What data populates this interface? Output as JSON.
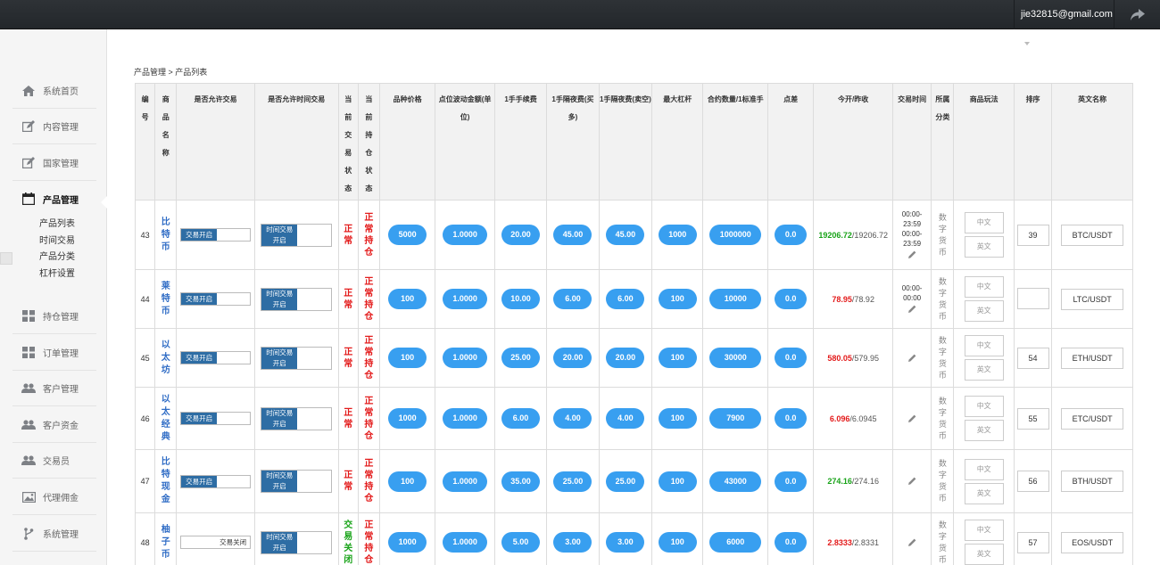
{
  "header": {
    "user_email": "jie32815@gmail.com"
  },
  "sidebar": {
    "items": [
      {
        "label": "系统首页",
        "icon": "home-icon"
      },
      {
        "label": "内容管理",
        "icon": "edit-icon"
      },
      {
        "label": "国家管理",
        "icon": "edit-icon"
      },
      {
        "label": "产品管理",
        "icon": "calendar-icon"
      },
      {
        "label": "持仓管理",
        "icon": "grid-icon"
      },
      {
        "label": "订单管理",
        "icon": "grid-icon"
      },
      {
        "label": "客户管理",
        "icon": "users-icon"
      },
      {
        "label": "客户资金",
        "icon": "users-icon"
      },
      {
        "label": "交易员",
        "icon": "users-icon"
      },
      {
        "label": "代理佣金",
        "icon": "picture-icon"
      },
      {
        "label": "系统管理",
        "icon": "fork-icon"
      }
    ],
    "sub_items": [
      "产品列表",
      "时间交易",
      "产品分类",
      "杠杆设置"
    ]
  },
  "breadcrumb": "产品管理 > 产品列表",
  "table": {
    "headers": [
      "编号",
      "商品名称",
      "是否允许交易",
      "是否允许时间交易",
      "当前交易状态",
      "当前持仓状态",
      "品种价格",
      "点位波动金额(单位)",
      "1手手续费",
      "1手隔夜费(买多)",
      "1手隔夜费(卖空)",
      "最大杠杆",
      "合约数量/1标准手",
      "点差",
      "今开/昨收",
      "交易时间",
      "所属分类",
      "商品玩法",
      "排序",
      "英文名称"
    ],
    "labels": {
      "trade_on": "交易开启",
      "trade_off": "交易关闭",
      "time_trade_on_1": "时间交易",
      "time_trade_on_2": "开启",
      "lang_cn": "中文",
      "lang_en": "英文",
      "category": "数字货币"
    },
    "rows": [
      {
        "id": "43",
        "name": "比特币",
        "trade": "on",
        "state": "正常",
        "hold": "正常持仓",
        "price": "5000",
        "tick": "1.0000",
        "fee": "20.00",
        "buy": "45.00",
        "sell": "45.00",
        "lev": "1000",
        "qty": "1000000",
        "spread": "0.0",
        "open": "19206.72",
        "close": "19206.72",
        "open_color": "green",
        "t1": "00:00-23:59",
        "t2": "00:00-23:59",
        "sort": "39",
        "en": "BTC/USDT"
      },
      {
        "id": "44",
        "name": "莱特币",
        "trade": "on",
        "state": "正常",
        "hold": "正常持仓",
        "price": "100",
        "tick": "1.0000",
        "fee": "10.00",
        "buy": "6.00",
        "sell": "6.00",
        "lev": "100",
        "qty": "10000",
        "spread": "0.0",
        "open": "78.95",
        "close": "78.92",
        "open_color": "red",
        "t1": "00:00-00:00",
        "t2": "",
        "sort": "",
        "en": "LTC/USDT"
      },
      {
        "id": "45",
        "name": "以太坊",
        "trade": "on",
        "state": "正常",
        "hold": "正常持仓",
        "price": "100",
        "tick": "1.0000",
        "fee": "25.00",
        "buy": "20.00",
        "sell": "20.00",
        "lev": "100",
        "qty": "30000",
        "spread": "0.0",
        "open": "580.05",
        "close": "579.95",
        "open_color": "red",
        "t1": "",
        "t2": "",
        "sort": "54",
        "en": "ETH/USDT"
      },
      {
        "id": "46",
        "name": "以太经典",
        "trade": "on",
        "state": "正常",
        "hold": "正常持仓",
        "price": "1000",
        "tick": "1.0000",
        "fee": "6.00",
        "buy": "4.00",
        "sell": "4.00",
        "lev": "100",
        "qty": "7900",
        "spread": "0.0",
        "open": "6.096",
        "close": "6.0945",
        "open_color": "red",
        "t1": "",
        "t2": "",
        "sort": "55",
        "en": "ETC/USDT"
      },
      {
        "id": "47",
        "name": "比特现金",
        "trade": "on",
        "state": "正常",
        "hold": "正常持仓",
        "price": "100",
        "tick": "1.0000",
        "fee": "35.00",
        "buy": "25.00",
        "sell": "25.00",
        "lev": "100",
        "qty": "43000",
        "spread": "0.0",
        "open": "274.16",
        "close": "274.16",
        "open_color": "green",
        "t1": "",
        "t2": "",
        "sort": "56",
        "en": "BTH/USDT"
      },
      {
        "id": "48",
        "name": "柚子币",
        "trade": "off",
        "state": "交易关闭",
        "hold": "正常持仓",
        "price": "1000",
        "tick": "1.0000",
        "fee": "5.00",
        "buy": "3.00",
        "sell": "3.00",
        "lev": "100",
        "qty": "6000",
        "spread": "0.0",
        "open": "2.8333",
        "close": "2.8331",
        "open_color": "red",
        "t1": "",
        "t2": "",
        "sort": "57",
        "en": "EOS/USDT"
      }
    ]
  },
  "colors": {
    "accent": "#389ff0",
    "toggle": "#2e6da4",
    "red": "#e31b1b",
    "green": "#18a318"
  }
}
